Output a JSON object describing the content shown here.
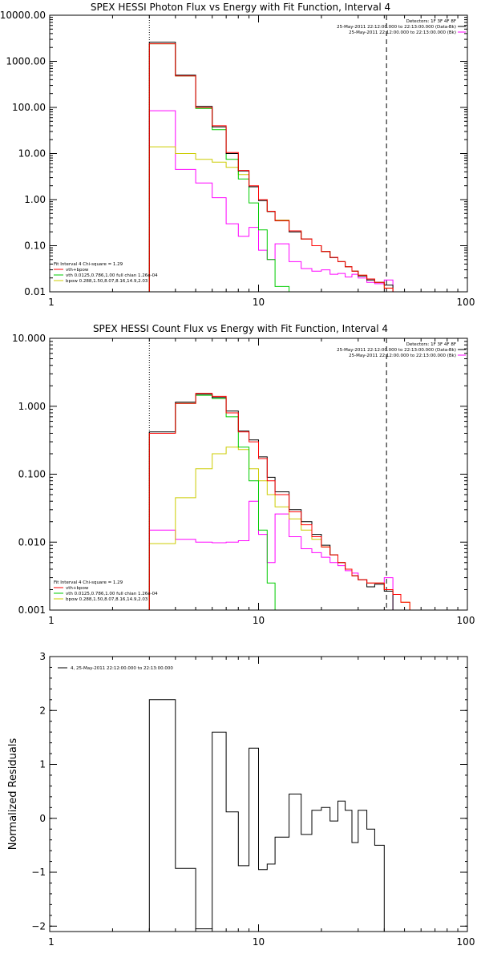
{
  "colors": {
    "sum": "#000000",
    "vth": "#00cc00",
    "bpow": "#cccc00",
    "total": "#ff0000",
    "back": "#ff00ff"
  },
  "chart_data": [
    {
      "type": "line",
      "title": "SPEX HESSI Photon Flux vs Energy with Fit Function, Interval 4",
      "xscale": "log",
      "yscale": "log",
      "xlim": [
        1,
        100
      ],
      "ylim": [
        0.01,
        10000
      ],
      "xticks": [
        {
          "v": 1,
          "label": "1"
        },
        {
          "v": 10,
          "label": "10"
        },
        {
          "v": 100,
          "label": "100"
        }
      ],
      "yticks": [
        {
          "v": 0.01,
          "label": "0.01"
        },
        {
          "v": 0.1,
          "label": "0.10"
        },
        {
          "v": 1,
          "label": "1.00"
        },
        {
          "v": 10,
          "label": "10.00"
        },
        {
          "v": 100,
          "label": "100.00"
        },
        {
          "v": 1000,
          "label": "1000.00"
        },
        {
          "v": 10000,
          "label": "10000.00"
        }
      ],
      "vlines": [
        {
          "x": 3,
          "style": "dotted"
        },
        {
          "x": 41,
          "style": "dashed"
        }
      ],
      "legend_right": [
        "Detectors: 1F 3F 4F 8F",
        "25-May-2011 22:12:00.000 to 22:13:00.000 (Data-Bk)",
        "25-May-2011 22:12:00.000 to 22:13:00.000 (Bk)"
      ],
      "legend_left": [
        "Fit Interval  4    Chi-square = 1.29",
        "vth+bpow",
        "vth 0.0125,0.786,1.00  full chian 1.26e-04",
        "bpow 0.288,1.50,8.07,8.16,14.9,2.03"
      ],
      "edges": [
        3,
        4,
        5,
        6,
        7,
        8,
        9,
        10,
        11,
        12,
        14,
        16,
        18,
        20,
        22,
        24,
        26,
        28,
        30,
        33,
        36,
        40,
        44,
        48,
        53,
        60
      ],
      "series": [
        {
          "name": "Data-Bk",
          "color": "sum",
          "values": [
            2600,
            500,
            105,
            38,
            10,
            4.2,
            1.9,
            0.95,
            0.55,
            0.35,
            0.2,
            0.14,
            0.1,
            0.075,
            0.055,
            0.045,
            0.035,
            0.028,
            0.022,
            0.018,
            0.016,
            0.014,
            null,
            null,
            null
          ]
        },
        {
          "name": "vth+bpow",
          "color": "total",
          "values": [
            2400,
            480,
            100,
            40,
            10.5,
            4.3,
            2.0,
            1.0,
            0.56,
            0.35,
            0.21,
            0.14,
            0.1,
            0.075,
            0.056,
            0.045,
            0.035,
            0.028,
            0.023,
            0.019,
            0.016,
            0.012,
            0.01,
            null,
            null
          ]
        },
        {
          "name": "vth",
          "color": "vth",
          "values": [
            2400,
            480,
            95,
            33,
            7.5,
            2.8,
            0.85,
            0.22,
            0.05,
            0.013,
            0.005,
            null,
            null,
            null,
            null,
            null,
            null,
            null,
            null,
            null,
            null,
            null,
            null,
            null,
            null
          ]
        },
        {
          "name": "bpow",
          "color": "bpow",
          "values": [
            14,
            10,
            7.5,
            6.5,
            5,
            3.5,
            1.9,
            1.0,
            0.55,
            0.36,
            0.21,
            0.14,
            0.1,
            0.075,
            0.056,
            0.045,
            0.035,
            0.028,
            0.023,
            0.019,
            0.016,
            0.012,
            0.01,
            null,
            null
          ]
        },
        {
          "name": "Bk",
          "color": "back",
          "values": [
            85,
            4.5,
            2.3,
            1.1,
            0.3,
            0.16,
            0.25,
            0.08,
            0.05,
            0.11,
            0.045,
            0.032,
            0.028,
            0.03,
            0.024,
            0.025,
            0.021,
            0.024,
            0.02,
            0.016,
            0.015,
            0.018,
            null,
            null,
            null
          ]
        }
      ]
    },
    {
      "type": "line",
      "title": "SPEX HESSI Count Flux vs Energy with Fit Function, Interval 4",
      "xscale": "log",
      "yscale": "log",
      "xlim": [
        1,
        100
      ],
      "ylim": [
        0.001,
        10
      ],
      "xticks": [
        {
          "v": 1,
          "label": "1"
        },
        {
          "v": 10,
          "label": "10"
        },
        {
          "v": 100,
          "label": "100"
        }
      ],
      "yticks": [
        {
          "v": 0.001,
          "label": "0.001"
        },
        {
          "v": 0.01,
          "label": "0.010"
        },
        {
          "v": 0.1,
          "label": "0.100"
        },
        {
          "v": 1,
          "label": "1.000"
        },
        {
          "v": 10,
          "label": "10.000"
        }
      ],
      "vlines": [
        {
          "x": 3,
          "style": "dotted"
        },
        {
          "x": 41,
          "style": "dashed"
        }
      ],
      "legend_right": [
        "Detectors: 1F 3F 4F 8F",
        "25-May-2011 22:12:00.000 to 22:13:00.000 (Data-Bk)",
        "25-May-2011 22:12:00.000 to 22:13:00.000 (Bk)"
      ],
      "legend_left": [
        "Fit Interval  4    Chi-square = 1.29",
        "vth+bpow",
        "vth 0.0125,0.786,1.00  full chian 1.26e-04",
        "bpow 0.288,1.50,8.07,8.16,14.9,2.03"
      ],
      "edges": [
        3,
        4,
        5,
        6,
        7,
        8,
        9,
        10,
        11,
        12,
        14,
        16,
        18,
        20,
        22,
        24,
        26,
        28,
        30,
        33,
        36,
        40,
        44,
        48,
        53,
        60
      ],
      "series": [
        {
          "name": "Data-Bk",
          "color": "sum",
          "values": [
            0.42,
            1.15,
            1.5,
            1.35,
            0.85,
            0.43,
            0.32,
            0.18,
            0.09,
            0.055,
            0.03,
            0.02,
            0.013,
            0.009,
            0.0065,
            0.005,
            0.004,
            0.0032,
            0.0028,
            0.0022,
            0.0024,
            0.0019,
            null,
            null,
            null
          ]
        },
        {
          "name": "vth+bpow",
          "color": "total",
          "values": [
            0.4,
            1.1,
            1.55,
            1.4,
            0.8,
            0.42,
            0.3,
            0.17,
            0.08,
            0.05,
            0.028,
            0.018,
            0.012,
            0.0085,
            0.0065,
            0.005,
            0.004,
            0.0032,
            0.0028,
            0.0025,
            0.0025,
            0.002,
            0.0017,
            0.0013,
            0.001
          ]
        },
        {
          "name": "vth",
          "color": "vth",
          "values": [
            0.4,
            1.1,
            1.45,
            1.3,
            0.7,
            0.25,
            0.08,
            0.015,
            0.0025,
            0.0008,
            null,
            null,
            null,
            null,
            null,
            null,
            null,
            null,
            null,
            null,
            null,
            null,
            null,
            null,
            null
          ]
        },
        {
          "name": "bpow",
          "color": "bpow",
          "values": [
            0.0095,
            0.045,
            0.12,
            0.2,
            0.25,
            0.23,
            0.12,
            0.08,
            0.05,
            0.033,
            0.022,
            0.015,
            0.011,
            0.0085,
            0.0065,
            0.005,
            0.004,
            0.0032,
            0.0028,
            0.0025,
            0.0025,
            0.002,
            0.0017,
            0.0013,
            0.001
          ]
        },
        {
          "name": "Bk",
          "color": "back",
          "values": [
            0.015,
            0.011,
            0.01,
            0.0098,
            0.01,
            0.0105,
            0.04,
            0.013,
            0.005,
            0.026,
            0.012,
            0.008,
            0.007,
            0.006,
            0.005,
            0.0045,
            0.0038,
            0.0035,
            0.0028,
            0.0025,
            0.0025,
            0.003,
            null,
            null,
            null
          ]
        }
      ]
    },
    {
      "type": "line",
      "title": "",
      "ylabel": "Normalized Residuals",
      "xscale": "log",
      "yscale": "linear",
      "xlim": [
        1,
        100
      ],
      "ylim": [
        -2.1,
        3
      ],
      "xticks": [
        {
          "v": 1,
          "label": "1"
        },
        {
          "v": 10,
          "label": "10"
        },
        {
          "v": 100,
          "label": "100"
        }
      ],
      "yticks": [
        {
          "v": -2,
          "label": "−2"
        },
        {
          "v": -1,
          "label": "−1"
        },
        {
          "v": 0,
          "label": "0"
        },
        {
          "v": 1,
          "label": "1"
        },
        {
          "v": 2,
          "label": "2"
        },
        {
          "v": 3,
          "label": "3"
        }
      ],
      "legend": "4, 25-May-2011 22:12:00.000 to 22:13:00.000",
      "edges": [
        3,
        4,
        5,
        6,
        7,
        8,
        9,
        10,
        11,
        12,
        14,
        16,
        18,
        20,
        22,
        24,
        26,
        28,
        30,
        33,
        36,
        40
      ],
      "series": [
        {
          "name": "residuals",
          "color": "sum",
          "values": [
            2.2,
            -0.93,
            -2.05,
            1.6,
            0.12,
            -0.88,
            1.3,
            -0.95,
            -0.85,
            -0.35,
            0.45,
            -0.3,
            0.15,
            0.2,
            -0.05,
            0.32,
            0.15,
            -0.45,
            0.15,
            -0.2,
            -0.5
          ]
        }
      ]
    }
  ]
}
